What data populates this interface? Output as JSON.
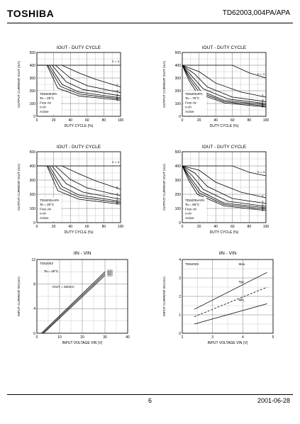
{
  "header": {
    "logo": "TOSHIBA",
    "doc_id": "TD62003,004PA/APA"
  },
  "footer": {
    "page": "6",
    "date": "2001-06-28"
  },
  "chart_data": [
    {
      "type": "line",
      "title": "IOUT - DUTY CYCLE",
      "xlabel": "DUTY CYCLE (%)",
      "ylabel": "OUTPUT CURRENT IOUT (mA)",
      "xlim": [
        0,
        100
      ],
      "ylim": [
        0,
        500
      ],
      "xticks": [
        "0",
        "20",
        "40",
        "60",
        "80",
        "100"
      ],
      "yticks": [
        "0",
        "100",
        "200",
        "300",
        "400",
        "500"
      ],
      "legend": [
        "TD62004PA",
        "Ta = 25°C",
        "Free Air",
        "n-ch",
        "Active"
      ],
      "series": [
        {
          "name": "n = 1",
          "x": [
            0,
            100
          ],
          "y": [
            400,
            400
          ]
        },
        {
          "name": "2",
          "x": [
            0,
            30,
            50,
            70,
            100
          ],
          "y": [
            400,
            400,
            340,
            290,
            230
          ]
        },
        {
          "name": "3",
          "x": [
            0,
            22,
            40,
            60,
            100
          ],
          "y": [
            400,
            400,
            300,
            240,
            185
          ]
        },
        {
          "name": "4",
          "x": [
            0,
            18,
            35,
            55,
            100
          ],
          "y": [
            400,
            400,
            270,
            210,
            160
          ]
        },
        {
          "name": "5",
          "x": [
            0,
            15,
            30,
            50,
            100
          ],
          "y": [
            400,
            400,
            250,
            190,
            145
          ]
        },
        {
          "name": "6",
          "x": [
            0,
            13,
            28,
            50,
            100
          ],
          "y": [
            400,
            400,
            235,
            175,
            135
          ]
        },
        {
          "name": "7",
          "x": [
            0,
            12,
            25,
            50,
            100
          ],
          "y": [
            400,
            400,
            220,
            160,
            125
          ]
        }
      ]
    },
    {
      "type": "line",
      "title": "IOUT - DUTY CYCLE",
      "xlabel": "DUTY CYCLE (%)",
      "ylabel": "OUTPUT CURRENT IOUT (mA)",
      "xlim": [
        0,
        100
      ],
      "ylim": [
        0,
        500
      ],
      "xticks": [
        "0",
        "20",
        "40",
        "60",
        "80",
        "100"
      ],
      "yticks": [
        "0",
        "100",
        "200",
        "300",
        "400",
        "500"
      ],
      "legend": [
        "TD62004PA",
        "Ta = 75°C",
        "Free Air",
        "n-ch",
        "Active"
      ],
      "series": [
        {
          "name": "n = 1",
          "x": [
            0,
            60,
            80,
            100
          ],
          "y": [
            400,
            400,
            340,
            300
          ]
        },
        {
          "name": "2",
          "x": [
            0,
            20,
            40,
            70,
            100
          ],
          "y": [
            400,
            350,
            260,
            190,
            150
          ]
        },
        {
          "name": "3",
          "x": [
            0,
            15,
            30,
            60,
            100
          ],
          "y": [
            400,
            330,
            230,
            150,
            115
          ]
        },
        {
          "name": "4",
          "x": [
            0,
            12,
            25,
            55,
            100
          ],
          "y": [
            400,
            310,
            215,
            135,
            100
          ]
        },
        {
          "name": "5",
          "x": [
            0,
            10,
            22,
            50,
            100
          ],
          "y": [
            400,
            300,
            200,
            125,
            90
          ]
        },
        {
          "name": "6",
          "x": [
            0,
            9,
            20,
            50,
            100
          ],
          "y": [
            400,
            290,
            190,
            115,
            80
          ]
        },
        {
          "name": "7",
          "x": [
            0,
            8,
            18,
            50,
            100
          ],
          "y": [
            400,
            280,
            180,
            105,
            72
          ]
        }
      ]
    },
    {
      "type": "line",
      "title": "IOUT - DUTY CYCLE",
      "xlabel": "DUTY CYCLE (%)",
      "ylabel": "OUTPUT CURRENT IOUT (mA)",
      "xlim": [
        0,
        100
      ],
      "ylim": [
        0,
        500
      ],
      "xticks": [
        "0",
        "20",
        "40",
        "60",
        "80",
        "100"
      ],
      "yticks": [
        "0",
        "100",
        "200",
        "300",
        "400",
        "500"
      ],
      "legend": [
        "TD6200xAPA",
        "Ta = 25°C",
        "Free Air",
        "n-ch",
        "Active"
      ],
      "series": [
        {
          "name": "n = 1",
          "x": [
            0,
            100
          ],
          "y": [
            400,
            400
          ]
        },
        {
          "name": "2",
          "x": [
            0,
            30,
            50,
            70,
            100
          ],
          "y": [
            400,
            400,
            345,
            295,
            235
          ]
        },
        {
          "name": "3",
          "x": [
            0,
            22,
            40,
            60,
            100
          ],
          "y": [
            400,
            400,
            305,
            245,
            190
          ]
        },
        {
          "name": "4",
          "x": [
            0,
            18,
            35,
            55,
            100
          ],
          "y": [
            400,
            400,
            275,
            215,
            165
          ]
        },
        {
          "name": "5",
          "x": [
            0,
            15,
            30,
            50,
            100
          ],
          "y": [
            400,
            400,
            255,
            195,
            150
          ]
        },
        {
          "name": "6",
          "x": [
            0,
            13,
            28,
            50,
            100
          ],
          "y": [
            400,
            400,
            240,
            180,
            140
          ]
        },
        {
          "name": "7",
          "x": [
            0,
            12,
            25,
            50,
            100
          ],
          "y": [
            400,
            400,
            225,
            165,
            130
          ]
        }
      ]
    },
    {
      "type": "line",
      "title": "IOUT - DUTY CYCLE",
      "xlabel": "DUTY CYCLE (%)",
      "ylabel": "OUTPUT CURRENT IOUT (mA)",
      "xlim": [
        0,
        100
      ],
      "ylim": [
        0,
        500
      ],
      "xticks": [
        "0",
        "20",
        "40",
        "60",
        "80",
        "100"
      ],
      "yticks": [
        "0",
        "100",
        "200",
        "300",
        "400",
        "500"
      ],
      "legend": [
        "TD6200xAPA",
        "Ta = 85°C",
        "Free Air",
        "n-ch",
        "Active"
      ],
      "series": [
        {
          "name": "n = 1",
          "x": [
            0,
            60,
            80,
            100
          ],
          "y": [
            400,
            400,
            355,
            330
          ]
        },
        {
          "name": "2",
          "x": [
            0,
            20,
            40,
            70,
            100
          ],
          "y": [
            400,
            370,
            285,
            215,
            175
          ]
        },
        {
          "name": "3",
          "x": [
            0,
            15,
            30,
            60,
            100
          ],
          "y": [
            400,
            350,
            255,
            170,
            135
          ]
        },
        {
          "name": "4",
          "x": [
            0,
            12,
            25,
            55,
            100
          ],
          "y": [
            400,
            330,
            235,
            150,
            115
          ]
        },
        {
          "name": "5",
          "x": [
            0,
            10,
            22,
            50,
            100
          ],
          "y": [
            400,
            315,
            220,
            138,
            105
          ]
        },
        {
          "name": "6",
          "x": [
            0,
            9,
            20,
            50,
            100
          ],
          "y": [
            400,
            305,
            210,
            128,
            95
          ]
        },
        {
          "name": "7",
          "x": [
            0,
            8,
            18,
            50,
            100
          ],
          "y": [
            400,
            295,
            200,
            118,
            85
          ]
        }
      ]
    },
    {
      "type": "line",
      "title": "IIN - VIN",
      "xlabel": "INPUT VOLTAGE VIN (V)",
      "ylabel": "INPUT CURRENT IIN (mA)",
      "xlim": [
        0,
        40
      ],
      "ylim": [
        0,
        12
      ],
      "xticks": [
        "0",
        "10",
        "20",
        "30",
        "40"
      ],
      "yticks": [
        "0",
        "4",
        "8",
        "12"
      ],
      "legend": [
        "TD62003",
        "Ta = 25°C",
        "IOUT = 500mA"
      ],
      "series": [
        {
          "name": "200",
          "x": [
            2,
            30
          ],
          "y": [
            0,
            10.0
          ]
        },
        {
          "name": "300",
          "x": [
            2.5,
            30
          ],
          "y": [
            0,
            9.7
          ]
        },
        {
          "name": "350",
          "x": [
            3,
            30
          ],
          "y": [
            0,
            9.4
          ]
        }
      ]
    },
    {
      "type": "line",
      "title": "IIN - VIN",
      "xlabel": "INPUT VOLTAGE VIN (V)",
      "ylabel": "INPUT CURRENT IIN (mA)",
      "xlim": [
        2,
        5
      ],
      "ylim": [
        0,
        4
      ],
      "xticks": [
        "2",
        "3",
        "4",
        "5"
      ],
      "yticks": [
        "0",
        "1",
        "2",
        "3",
        "4"
      ],
      "legend": [
        "TD62003"
      ],
      "series": [
        {
          "name": "Max.",
          "x": [
            2.4,
            4.8
          ],
          "y": [
            1.3,
            3.3
          ]
        },
        {
          "name": "Typ.",
          "x": [
            2.4,
            4.8
          ],
          "y": [
            0.9,
            2.5
          ]
        },
        {
          "name": "Min.",
          "x": [
            2.4,
            4.8
          ],
          "y": [
            0.5,
            1.6
          ]
        }
      ]
    }
  ]
}
